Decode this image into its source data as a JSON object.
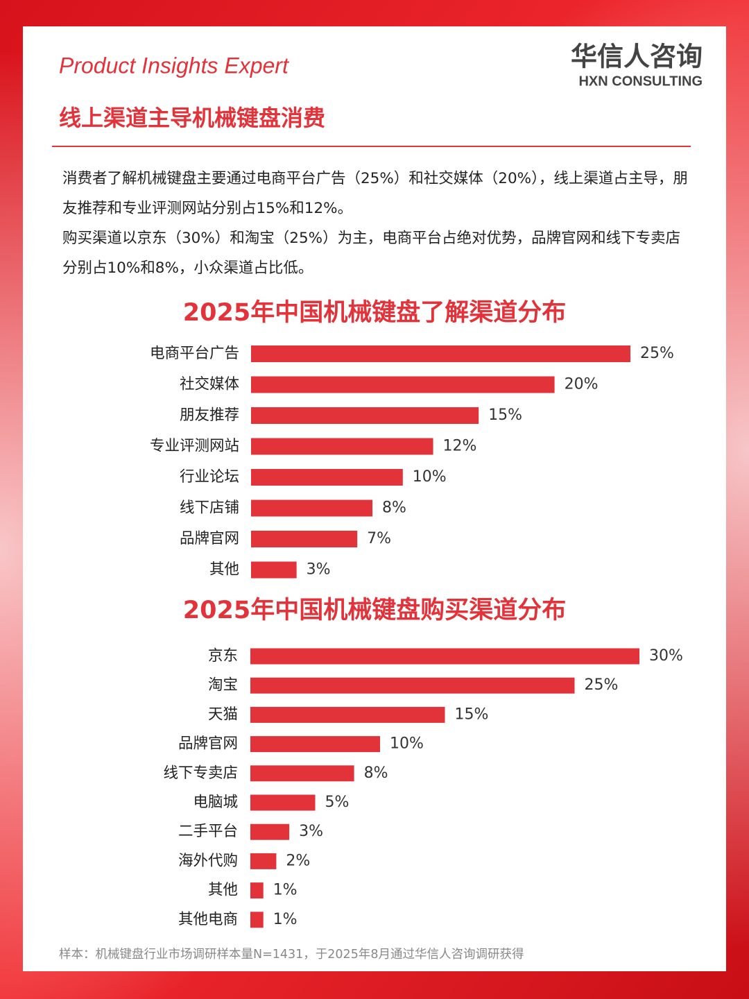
{
  "brand": "Product Insights Expert",
  "logo": {
    "name": "华信人咨询",
    "sub": "HXN CONSULTING"
  },
  "heading": "线上渠道主导机械键盘消费",
  "paragraphs": [
    "消费者了解机械键盘主要通过电商平台广告（25%）和社交媒体（20%），线上渠道占主导，朋友推荐和专业评测网站分别占15%和12%。",
    "购买渠道以京东（30%）和淘宝（25%）为主，电商平台占绝对优势，品牌官网和线下专卖店分别占10%和8%，小众渠道占比低。"
  ],
  "footnote": "样本：机械键盘行业市场调研样本量N=1431，于2025年8月通过华信人咨询调研获得",
  "chart_data": [
    {
      "type": "hbar",
      "title": "2025年中国机械键盘了解渠道分布",
      "color": "#e2323a",
      "categories": [
        "电商平台广告",
        "社交媒体",
        "朋友推荐",
        "专业评测网站",
        "行业论坛",
        "线下店铺",
        "品牌官网",
        "其他"
      ],
      "values": [
        25,
        20,
        15,
        12,
        10,
        8,
        7,
        3
      ],
      "value_labels": [
        "25%",
        "20%",
        "15%",
        "12%",
        "10%",
        "8%",
        "7%",
        "3%"
      ]
    },
    {
      "type": "hbar",
      "title": "2025年中国机械键盘购买渠道分布",
      "color": "#e2323a",
      "categories": [
        "京东",
        "淘宝",
        "天猫",
        "品牌官网",
        "线下专卖店",
        "电脑城",
        "二手平台",
        "海外代购",
        "其他",
        "其他电商"
      ],
      "values": [
        30,
        25,
        15,
        10,
        8,
        5,
        3,
        2,
        1,
        1
      ],
      "value_labels": [
        "30%",
        "25%",
        "15%",
        "10%",
        "8%",
        "5%",
        "3%",
        "2%",
        "1%",
        "1%"
      ]
    }
  ]
}
